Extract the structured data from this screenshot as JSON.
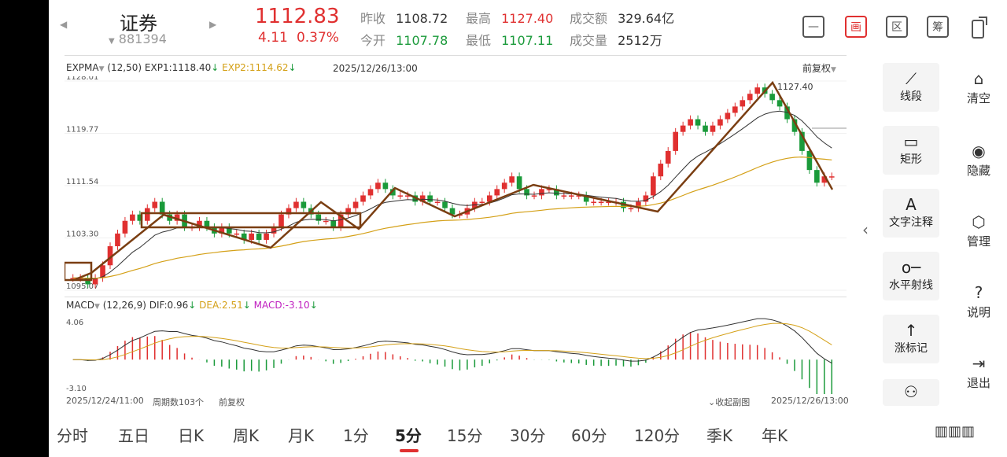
{
  "header": {
    "name": "证券",
    "code": "881394",
    "price": "1112.83",
    "change": "4.11",
    "change_pct": "0.37%",
    "stats": {
      "prev_close_label": "昨收",
      "prev_close": "1108.72",
      "high_label": "最高",
      "high": "1127.40",
      "amount_label": "成交额",
      "amount": "329.64亿",
      "open_label": "今开",
      "open": "1107.78",
      "low_label": "最低",
      "low": "1107.11",
      "volume_label": "成交量",
      "volume": "2512万"
    },
    "icons": [
      "minus-box-icon",
      "draw-icon",
      "region-icon",
      "chip-icon",
      "screen-rotate-icon"
    ],
    "draw_label": "画",
    "region_label": "区",
    "chip_label": "筹"
  },
  "chart": {
    "indicator": "EXPMA",
    "params": "(12,50)",
    "exp1": "EXP1:1118.40",
    "exp2": "EXP2:1114.62",
    "datetime": "2025/12/26/13:00",
    "adjust": "前复权",
    "y_labels": [
      "1128.01",
      "1119.77",
      "1111.54",
      "1103.30",
      "1095.07"
    ],
    "high_mark": "1127.40",
    "macd_label": "MACD",
    "macd_params": "(12,26,9)",
    "dif": "DIF:0.96",
    "dea": "DEA:2.51",
    "macd": "MACD:-3.10",
    "macd_top": "4.06",
    "macd_bottom": "-3.10",
    "start_date": "2025/12/24/11:00",
    "period_count": "周期数103个",
    "footer_adjust": "前复权",
    "collapse": "收起副图",
    "end_date": "2025/12/26/13:00"
  },
  "tools": [
    {
      "label": "线段",
      "icon": "line-segment-icon",
      "glyph": "⟋"
    },
    {
      "label": "矩形",
      "icon": "rectangle-icon",
      "glyph": "▭"
    },
    {
      "label": "文字注释",
      "icon": "text-annotation-icon",
      "glyph": "A"
    },
    {
      "label": "水平射线",
      "icon": "horizontal-ray-icon",
      "glyph": "o─"
    },
    {
      "label": "涨标记",
      "icon": "up-mark-icon",
      "glyph": "↑"
    }
  ],
  "side": [
    {
      "label": "清空",
      "icon": "clear-icon",
      "glyph": "⌂"
    },
    {
      "label": "隐藏",
      "icon": "eye-icon",
      "glyph": "◉"
    },
    {
      "label": "管理",
      "icon": "manage-icon",
      "glyph": "⬡"
    },
    {
      "label": "说明",
      "icon": "help-icon",
      "glyph": "?"
    },
    {
      "label": "退出",
      "icon": "exit-icon",
      "glyph": "⇥"
    }
  ],
  "periods": [
    "分时",
    "五日",
    "日K",
    "周K",
    "月K",
    "1分",
    "5分",
    "15分",
    "30分",
    "60分",
    "120分",
    "季K",
    "年K"
  ],
  "active_period": "5分",
  "colors": {
    "up": "#e03030",
    "down": "#1a9a3a",
    "exp1": "#333333",
    "exp2": "#d4a017",
    "drawing": "#7a3e12"
  }
}
